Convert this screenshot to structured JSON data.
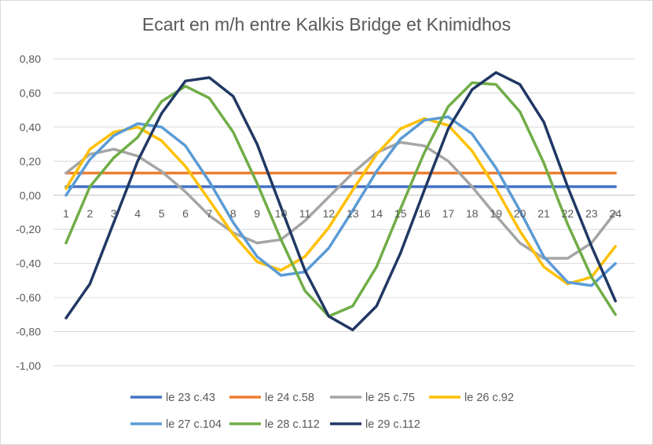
{
  "chart_data": {
    "type": "line",
    "title": "Ecart en m/h entre Kalkis Bridge et Knimidhos",
    "xlabel": "",
    "ylabel": "",
    "x": [
      1,
      2,
      3,
      4,
      5,
      6,
      7,
      8,
      9,
      10,
      11,
      12,
      13,
      14,
      15,
      16,
      17,
      18,
      19,
      20,
      21,
      22,
      23,
      24
    ],
    "x_tick_labels": [
      "1",
      "2",
      "3",
      "4",
      "5",
      "6",
      "7",
      "8",
      "9",
      "10",
      "11",
      "12",
      "13",
      "14",
      "15",
      "16",
      "17",
      "18",
      "19",
      "20",
      "21",
      "22",
      "23",
      "24"
    ],
    "ylim": [
      -1.0,
      0.8
    ],
    "y_ticks": [
      0.8,
      0.6,
      0.4,
      0.2,
      0.0,
      -0.2,
      -0.4,
      -0.6,
      -0.8,
      -1.0
    ],
    "y_tick_labels": [
      "0,80",
      "0,60",
      "0,40",
      "0,20",
      "0,00",
      "-0,20",
      "-0,40",
      "-0,60",
      "-0,80",
      "-1,00"
    ],
    "grid": true,
    "legend_position": "bottom",
    "series": [
      {
        "name": "le 23 c.43",
        "color": "#4472c4",
        "values": [
          0.05,
          0.05,
          0.05,
          0.05,
          0.05,
          0.05,
          0.05,
          0.05,
          0.05,
          0.05,
          0.05,
          0.05,
          0.05,
          0.05,
          0.05,
          0.05,
          0.05,
          0.05,
          0.05,
          0.05,
          0.05,
          0.05,
          0.05,
          0.05
        ]
      },
      {
        "name": "le 24 c.58",
        "color": "#ed7d31",
        "values": [
          0.13,
          0.13,
          0.13,
          0.13,
          0.13,
          0.13,
          0.13,
          0.13,
          0.13,
          0.13,
          0.13,
          0.13,
          0.13,
          0.13,
          0.13,
          0.13,
          0.13,
          0.13,
          0.13,
          0.13,
          0.13,
          0.13,
          0.13,
          0.13
        ]
      },
      {
        "name": "le 25 c.75",
        "color": "#a5a5a5",
        "values": [
          0.13,
          0.24,
          0.27,
          0.23,
          0.14,
          0.02,
          -0.12,
          -0.22,
          -0.28,
          -0.26,
          -0.15,
          -0.01,
          0.13,
          0.25,
          0.31,
          0.29,
          0.2,
          0.05,
          -0.12,
          -0.28,
          -0.37,
          -0.37,
          -0.28,
          -0.1
        ]
      },
      {
        "name": "le 26 c.92",
        "color": "#ffc000",
        "values": [
          0.04,
          0.27,
          0.37,
          0.4,
          0.32,
          0.17,
          -0.03,
          -0.23,
          -0.39,
          -0.44,
          -0.36,
          -0.19,
          0.03,
          0.24,
          0.39,
          0.45,
          0.41,
          0.26,
          0.04,
          -0.21,
          -0.42,
          -0.52,
          -0.48,
          -0.3
        ]
      },
      {
        "name": "le 27 c.104",
        "color": "#5b9bd5",
        "values": [
          0.0,
          0.21,
          0.35,
          0.42,
          0.4,
          0.29,
          0.08,
          -0.16,
          -0.36,
          -0.47,
          -0.45,
          -0.31,
          -0.09,
          0.14,
          0.33,
          0.44,
          0.46,
          0.36,
          0.16,
          -0.09,
          -0.36,
          -0.51,
          -0.53,
          -0.4
        ]
      },
      {
        "name": "le 28 c.112",
        "color": "#70ad47",
        "values": [
          -0.28,
          0.05,
          0.22,
          0.34,
          0.55,
          0.64,
          0.57,
          0.37,
          0.07,
          -0.26,
          -0.56,
          -0.71,
          -0.65,
          -0.42,
          -0.08,
          0.25,
          0.52,
          0.66,
          0.65,
          0.49,
          0.19,
          -0.17,
          -0.48,
          -0.7
        ]
      },
      {
        "name": "le 29 c.112",
        "color": "#203864",
        "values": [
          -0.72,
          -0.52,
          -0.16,
          0.2,
          0.48,
          0.67,
          0.69,
          0.58,
          0.3,
          -0.07,
          -0.44,
          -0.71,
          -0.79,
          -0.65,
          -0.34,
          0.03,
          0.39,
          0.62,
          0.72,
          0.65,
          0.43,
          0.05,
          -0.3,
          -0.62
        ]
      }
    ]
  }
}
